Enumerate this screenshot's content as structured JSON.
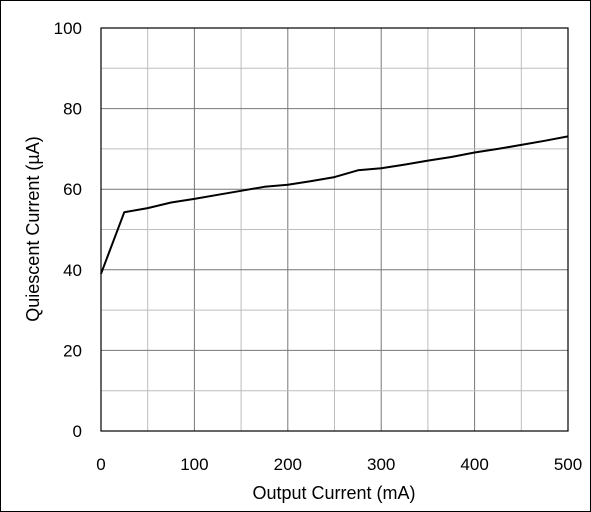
{
  "chart_data": {
    "type": "line",
    "title": "",
    "xlabel": "Output Current (mA)",
    "ylabel": "Quiescent Current (µA)",
    "xlim": [
      0,
      500
    ],
    "ylim": [
      0,
      100
    ],
    "x_ticks": [
      0,
      100,
      200,
      300,
      400,
      500
    ],
    "y_ticks": [
      0,
      20,
      40,
      60,
      80,
      100
    ],
    "x_minor_step": 50,
    "y_minor_step": 10,
    "grid": true,
    "series": [
      {
        "color": "#000000",
        "x": [
          0,
          25,
          50,
          75,
          100,
          125,
          150,
          175,
          200,
          225,
          250,
          275,
          300,
          325,
          350,
          375,
          400,
          425,
          450,
          475,
          500
        ],
        "y": [
          39,
          54.3,
          55.3,
          56.7,
          57.6,
          58.6,
          59.6,
          60.6,
          61.1,
          62,
          63,
          64.7,
          65.2,
          66.1,
          67.1,
          68,
          69.1,
          70,
          71,
          72,
          73.1
        ]
      }
    ]
  }
}
